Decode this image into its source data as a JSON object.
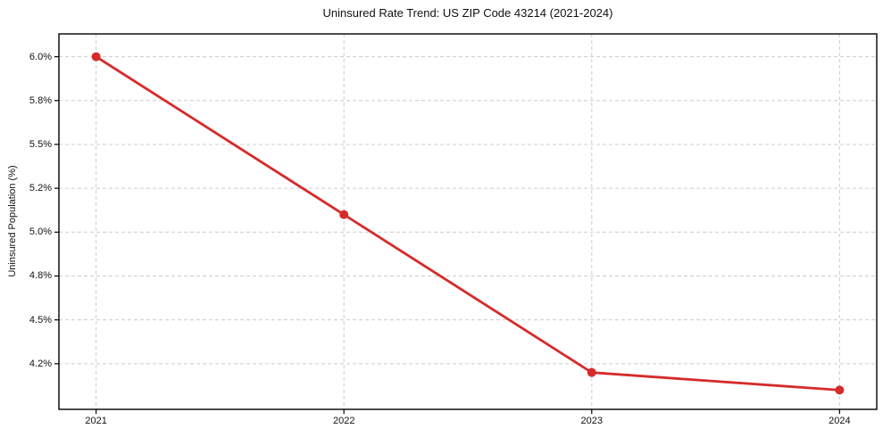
{
  "chart_data": {
    "type": "line",
    "title": "Uninsured Rate Trend: US ZIP Code 43214 (2021-2024)",
    "xlabel": "",
    "ylabel": "Uninsured Population (%)",
    "x": [
      2021,
      2022,
      2023,
      2024
    ],
    "values": [
      6.0,
      5.1,
      4.2,
      4.1
    ],
    "x_ticks": [
      {
        "value": 2021,
        "label": "2021"
      },
      {
        "value": 2022,
        "label": "2022"
      },
      {
        "value": 2023,
        "label": "2023"
      },
      {
        "value": 2024,
        "label": "2024"
      }
    ],
    "y_ticks": [
      {
        "value": 4.25,
        "label": "4.2%"
      },
      {
        "value": 4.5,
        "label": "4.5%"
      },
      {
        "value": 4.75,
        "label": "4.8%"
      },
      {
        "value": 5.0,
        "label": "5.0%"
      },
      {
        "value": 5.25,
        "label": "5.2%"
      },
      {
        "value": 5.5,
        "label": "5.5%"
      },
      {
        "value": 5.75,
        "label": "5.8%"
      },
      {
        "value": 6.0,
        "label": "6.0%"
      }
    ],
    "xlim": [
      2020.85,
      2024.15
    ],
    "ylim": [
      3.99,
      6.13
    ],
    "grid": "dashed",
    "legend": "none",
    "colors": {
      "line": "#d62b2b",
      "marker": "#d62b2b",
      "grid": "#cccccc",
      "axis": "#000000",
      "text": "#111111",
      "background": "#ffffff"
    }
  }
}
